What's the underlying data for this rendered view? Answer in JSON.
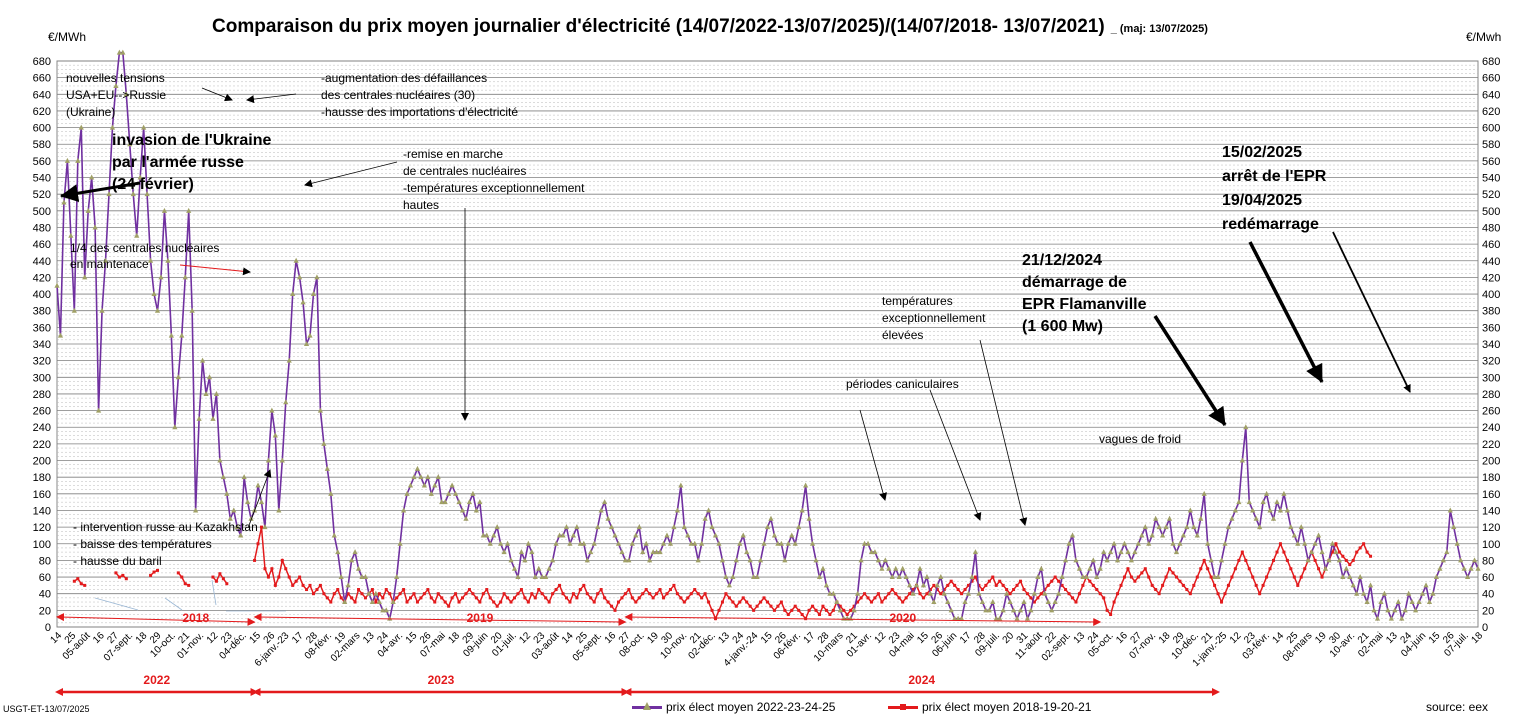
{
  "title": "Comparaison du prix moyen journalier d'électricité (14/07/2022-13/07/2025)/(14/07/2018-  13/07/2021)",
  "title_maj": "_ (maj:  13/07/2025)",
  "unit_left": "€/MWh",
  "unit_right": "€/Mwh",
  "footer_left": "USGT-ET-13/07/2025",
  "source": "source: eex",
  "colors": {
    "series_new": "#7030a0",
    "series_old": "#e31a1c",
    "marker_new": "#a0a066",
    "annotation": "#e31a1c"
  },
  "chart_data": {
    "type": "line",
    "ylim": [
      0,
      680
    ],
    "ytick_step": 20,
    "grid": true,
    "legend_position": "bottom",
    "x_tick_labels": [
      "14",
      "25",
      "05-août",
      "16",
      "27",
      "07-sept.",
      "18",
      "29",
      "10-oct.",
      "21",
      "01-nov.",
      "12",
      "23",
      "04-déc.",
      "15",
      "26",
      "6-janv.-23",
      "17",
      "28",
      "08-févr.",
      "19",
      "02-mars",
      "13",
      "24",
      "04-avr.",
      "15",
      "26",
      "07-mai",
      "18",
      "29",
      "09-juin",
      "20",
      "01-juil.",
      "12",
      "23",
      "03-août",
      "14",
      "25",
      "05-sept.",
      "16",
      "27",
      "08-oct.",
      "19",
      "30",
      "10-nov.",
      "21",
      "02-déc.",
      "13",
      "24",
      "4-janv.-24",
      "15",
      "26",
      "06-févr.",
      "17",
      "28",
      "10-mars",
      "21",
      "01-avr.",
      "12",
      "23",
      "04-mai",
      "15",
      "26",
      "06-juin",
      "17",
      "28",
      "09-juil.",
      "20",
      "31",
      "11-août",
      "22",
      "02-sept.",
      "13",
      "24",
      "05-oct.",
      "16",
      "27",
      "07-nov.",
      "18",
      "29",
      "10-déc.",
      "21",
      "1-janv.-25",
      "12",
      "23",
      "03-févr.",
      "14",
      "25",
      "08-mars",
      "19",
      "30",
      "10-avr.",
      "21",
      "02-mai",
      "13",
      "24",
      "04-juin",
      "15",
      "26",
      "07-juil.",
      "18"
    ],
    "series": [
      {
        "name": "prix élect moyen 2022-23-24-25",
        "color": "#7030a0",
        "values": [
          410,
          350,
          510,
          560,
          470,
          380,
          560,
          600,
          420,
          500,
          540,
          480,
          260,
          380,
          440,
          520,
          600,
          650,
          690,
          690,
          640,
          580,
          520,
          470,
          540,
          600,
          520,
          440,
          400,
          380,
          420,
          500,
          440,
          350,
          240,
          300,
          350,
          420,
          500,
          380,
          140,
          250,
          320,
          280,
          300,
          250,
          280,
          200,
          180,
          160,
          130,
          140,
          120,
          110,
          180,
          150,
          130,
          140,
          170,
          150,
          120,
          200,
          260,
          230,
          140,
          200,
          270,
          320,
          400,
          440,
          420,
          390,
          340,
          350,
          400,
          420,
          260,
          220,
          190,
          160,
          110,
          90,
          60,
          30,
          50,
          80,
          90,
          70,
          60,
          60,
          40,
          30,
          40,
          30,
          20,
          20,
          10,
          30,
          60,
          100,
          140,
          160,
          170,
          180,
          190,
          180,
          170,
          180,
          160,
          170,
          180,
          150,
          150,
          160,
          170,
          160,
          150,
          140,
          130,
          150,
          160,
          140,
          150,
          110,
          110,
          100,
          110,
          120,
          100,
          90,
          100,
          80,
          70,
          60,
          90,
          80,
          100,
          90,
          60,
          70,
          60,
          60,
          70,
          80,
          100,
          110,
          110,
          120,
          100,
          110,
          120,
          100,
          100,
          80,
          90,
          100,
          120,
          140,
          150,
          130,
          120,
          110,
          100,
          90,
          80,
          80,
          100,
          110,
          120,
          90,
          100,
          80,
          90,
          90,
          90,
          100,
          110,
          100,
          120,
          140,
          170,
          120,
          110,
          100,
          100,
          80,
          100,
          130,
          140,
          120,
          110,
          100,
          80,
          60,
          50,
          60,
          80,
          100,
          110,
          90,
          80,
          60,
          60,
          80,
          100,
          120,
          130,
          110,
          100,
          100,
          80,
          100,
          110,
          100,
          120,
          140,
          170,
          130,
          100,
          80,
          60,
          70,
          50,
          40,
          40,
          30,
          20,
          10,
          10,
          10,
          20,
          40,
          80,
          100,
          100,
          90,
          90,
          80,
          70,
          80,
          70,
          60,
          70,
          60,
          70,
          60,
          50,
          40,
          50,
          70,
          50,
          60,
          40,
          30,
          50,
          60,
          40,
          30,
          20,
          10,
          10,
          10,
          30,
          40,
          60,
          90,
          40,
          30,
          20,
          20,
          30,
          10,
          10,
          20,
          40,
          30,
          20,
          10,
          20,
          30,
          10,
          20,
          40,
          60,
          70,
          40,
          30,
          20,
          30,
          40,
          60,
          80,
          100,
          110,
          80,
          70,
          60,
          60,
          70,
          80,
          60,
          70,
          90,
          80,
          90,
          100,
          80,
          90,
          100,
          90,
          80,
          90,
          100,
          110,
          120,
          100,
          110,
          130,
          120,
          110,
          120,
          130,
          100,
          90,
          100,
          110,
          120,
          140,
          120,
          110,
          130,
          160,
          100,
          80,
          60,
          60,
          80,
          100,
          120,
          130,
          140,
          150,
          200,
          240,
          150,
          140,
          130,
          120,
          150,
          160,
          140,
          130,
          150,
          140,
          160,
          140,
          120,
          110,
          100,
          120,
          100,
          80,
          90,
          100,
          110,
          90,
          70,
          80,
          100,
          90,
          80,
          60,
          70,
          60,
          50,
          40,
          60,
          40,
          30,
          50,
          20,
          10,
          30,
          40,
          20,
          10,
          20,
          30,
          10,
          20,
          40,
          30,
          20,
          30,
          40,
          50,
          30,
          40,
          60,
          70,
          80,
          90,
          140,
          120,
          100,
          80,
          70,
          60,
          70,
          80,
          70
        ]
      },
      {
        "name": "prix élect moyen 2018-19-20-21",
        "color": "#e31a1c",
        "segments": [
          {
            "start": 5,
            "values": [
              55,
              58,
              52,
              50
            ]
          },
          {
            "start": 17,
            "values": [
              65,
              60,
              62,
              58
            ]
          },
          {
            "start": 27,
            "values": [
              62,
              66,
              68
            ]
          },
          {
            "start": 35,
            "values": [
              65,
              60,
              52,
              50
            ]
          },
          {
            "start": 45,
            "values": [
              60,
              55,
              64,
              58,
              52
            ]
          }
        ],
        "start": 57,
        "values": [
          80,
          100,
          120,
          70,
          60,
          70,
          50,
          60,
          80,
          70,
          60,
          50,
          55,
          60,
          50,
          45,
          50,
          40,
          45,
          50,
          40,
          35,
          30,
          40,
          45,
          35,
          30,
          40,
          35,
          30,
          45,
          40,
          35,
          40,
          45,
          30,
          40,
          35,
          45,
          40,
          30,
          35,
          40,
          45,
          30,
          35,
          40,
          30,
          35,
          40,
          45,
          35,
          30,
          40,
          35,
          30,
          25,
          35,
          40,
          30,
          35,
          40,
          45,
          40,
          35,
          30,
          40,
          45,
          35,
          30,
          25,
          30,
          40,
          35,
          30,
          35,
          40,
          45,
          35,
          30,
          40,
          35,
          45,
          40,
          35,
          30,
          40,
          45,
          50,
          40,
          35,
          30,
          40,
          35,
          45,
          50,
          40,
          35,
          30,
          40,
          45,
          35,
          30,
          25,
          20,
          30,
          35,
          40,
          45,
          35,
          30,
          35,
          40,
          45,
          40,
          35,
          40,
          45,
          35,
          40,
          45,
          50,
          40,
          35,
          30,
          35,
          40,
          45,
          40,
          35,
          40,
          30,
          20,
          10,
          20,
          30,
          40,
          35,
          30,
          25,
          30,
          35,
          30,
          25,
          20,
          25,
          30,
          35,
          30,
          25,
          20,
          25,
          30,
          20,
          15,
          20,
          25,
          20,
          15,
          10,
          20,
          25,
          20,
          15,
          25,
          20,
          15,
          20,
          30,
          25,
          20,
          15,
          20,
          25,
          30,
          35,
          40,
          35,
          30,
          35,
          40,
          30,
          35,
          40,
          45,
          40,
          35,
          30,
          35,
          40,
          45,
          50,
          40,
          35,
          40,
          45,
          50,
          45,
          40,
          45,
          50,
          55,
          50,
          45,
          40,
          45,
          50,
          55,
          60,
          50,
          45,
          50,
          55,
          60,
          50,
          55,
          50,
          45,
          40,
          45,
          50,
          55,
          45,
          40,
          35,
          30,
          35,
          40,
          45,
          50,
          55,
          60,
          55,
          50,
          45,
          40,
          35,
          30,
          40,
          50,
          60,
          55,
          50,
          45,
          40,
          35,
          20,
          15,
          30,
          40,
          50,
          60,
          70,
          60,
          55,
          60,
          65,
          70,
          60,
          50,
          45,
          40,
          50,
          60,
          70,
          65,
          60,
          55,
          50,
          45,
          40,
          50,
          60,
          70,
          80,
          70,
          60,
          50,
          40,
          30,
          40,
          50,
          60,
          70,
          80,
          90,
          80,
          70,
          60,
          50,
          40,
          50,
          60,
          70,
          80,
          90,
          100,
          90,
          80,
          70,
          60,
          50,
          60,
          70,
          80,
          90,
          80,
          70,
          60,
          70,
          80,
          90,
          100,
          90,
          85,
          80,
          75,
          80,
          90,
          95,
          100,
          90,
          85
        ]
      }
    ],
    "year_brackets_top": [
      {
        "label": "2018",
        "from": 0,
        "to": 57
      },
      {
        "label": "2019",
        "from": 57,
        "to": 164
      },
      {
        "label": "2020",
        "from": 164,
        "to": 301
      }
    ],
    "year_brackets_bottom": [
      {
        "label": "2022",
        "from": 0,
        "to": 57
      },
      {
        "label": "2023",
        "from": 57,
        "to": 164
      },
      {
        "label": "2024",
        "from": 164,
        "to": 301
      }
    ],
    "annotations": [
      {
        "id": "ann-tensions",
        "text": "nouvelles tensions\nUSA+EU-->Russie\n(Ukraine)",
        "bold": false
      },
      {
        "id": "ann-defaillances",
        "text": "-augmentation des défaillances\ndes centrales nucléaires (30)\n-hausse des importations d'électricité",
        "bold": false
      },
      {
        "id": "ann-invasion",
        "text": "invasion de l'Ukraine\npar l'armée russe\n(24 février)",
        "bold": true
      },
      {
        "id": "ann-remise",
        "text": "-remise en marche\nde centrales nucléaires\n-températures exceptionnellement\nhautes",
        "bold": false
      },
      {
        "id": "ann-maintenance",
        "text": "1/4 des centrales nucléaires\nen maintenace",
        "bold": false
      },
      {
        "id": "ann-kazakhstan",
        "text": "- intervention russe au Kazakhstan\n- baisse des températures\n- hausse du baril",
        "bold": false
      },
      {
        "id": "ann-temperatures",
        "text": "températures\nexceptionnellement\nélevées",
        "bold": false
      },
      {
        "id": "ann-caniculaires",
        "text": "périodes caniculaires",
        "bold": false
      },
      {
        "id": "ann-demarrage",
        "text": "21/12/2024\ndémarrage de\nEPR Flamanville\n(1 600 Mw)",
        "bold": true
      },
      {
        "id": "ann-arret",
        "text": "15/02/2025\narrêt de l'EPR\n19/04/2025\nredémarrage",
        "bold": true
      },
      {
        "id": "ann-froid",
        "text": "vagues de froid",
        "bold": false
      }
    ]
  }
}
